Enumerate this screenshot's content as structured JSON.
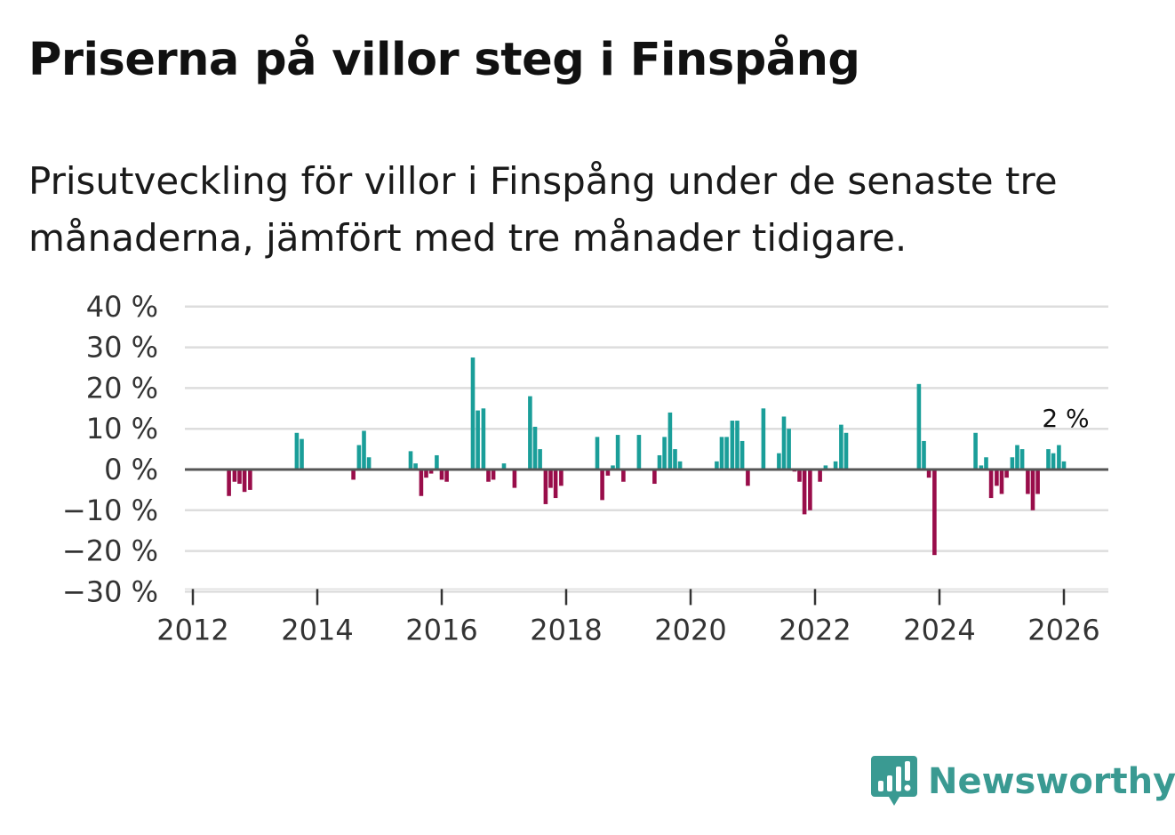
{
  "header": {
    "title": "Priserna på villor steg i Finspång",
    "subtitle": "Prisutveckling för villor i Finspång under de senaste tre månaderna, jämfört med tre månader tidigare."
  },
  "brand": {
    "name": "Newsworthy",
    "icon": "newsworthy-logo-icon"
  },
  "colors": {
    "positive": "#1a9e99",
    "negative": "#990d4a",
    "grid": "#dddddd",
    "zero": "#555555",
    "brand": "#3a9a92"
  },
  "chart_data": {
    "type": "bar",
    "title": "Priserna på villor steg i Finspång",
    "xlabel": "",
    "ylabel": "",
    "ylim": [
      -30,
      40
    ],
    "xlim": [
      2011.9,
      2026.7
    ],
    "yticks": [
      40,
      30,
      20,
      10,
      0,
      -10,
      -20,
      -30
    ],
    "ytick_labels": [
      "40 %",
      "30 %",
      "20 %",
      "10 %",
      "0 %",
      "−10 %",
      "−20 %",
      "−30 %"
    ],
    "xticks": [
      2012,
      2014,
      2016,
      2018,
      2020,
      2022,
      2024,
      2026
    ],
    "xtick_labels": [
      "2012",
      "2014",
      "2016",
      "2018",
      "2020",
      "2022",
      "2024",
      "2026"
    ],
    "annotation": {
      "x": 2026.0,
      "value": 2,
      "label": "2 %"
    },
    "series": [
      {
        "name": "Prisutveckling",
        "points": [
          [
            2012.58,
            -6.5
          ],
          [
            2012.67,
            -3
          ],
          [
            2012.75,
            -3.5
          ],
          [
            2012.83,
            -5.5
          ],
          [
            2012.92,
            -5
          ],
          [
            2013.67,
            9
          ],
          [
            2013.75,
            7.5
          ],
          [
            2014.58,
            -2.5
          ],
          [
            2014.67,
            6
          ],
          [
            2014.75,
            9.5
          ],
          [
            2014.83,
            3
          ],
          [
            2015.5,
            4.5
          ],
          [
            2015.58,
            1.5
          ],
          [
            2015.67,
            -6.5
          ],
          [
            2015.75,
            -2
          ],
          [
            2015.83,
            -1
          ],
          [
            2015.92,
            3.5
          ],
          [
            2016.0,
            -2.5
          ],
          [
            2016.08,
            -3
          ],
          [
            2016.5,
            27.5
          ],
          [
            2016.58,
            14.5
          ],
          [
            2016.67,
            15
          ],
          [
            2016.75,
            -3
          ],
          [
            2016.83,
            -2.5
          ],
          [
            2017.0,
            1.5
          ],
          [
            2017.17,
            -4.5
          ],
          [
            2017.42,
            18
          ],
          [
            2017.5,
            10.5
          ],
          [
            2017.58,
            5
          ],
          [
            2017.67,
            -8.5
          ],
          [
            2017.75,
            -4.5
          ],
          [
            2017.83,
            -7
          ],
          [
            2017.92,
            -4
          ],
          [
            2018.5,
            8
          ],
          [
            2018.58,
            -7.5
          ],
          [
            2018.67,
            -1.5
          ],
          [
            2018.75,
            1
          ],
          [
            2018.83,
            8.5
          ],
          [
            2018.92,
            -3
          ],
          [
            2019.17,
            8.5
          ],
          [
            2019.42,
            -3.5
          ],
          [
            2019.5,
            3.5
          ],
          [
            2019.58,
            8
          ],
          [
            2019.67,
            14
          ],
          [
            2019.75,
            5
          ],
          [
            2019.83,
            2
          ],
          [
            2020.42,
            2
          ],
          [
            2020.5,
            8
          ],
          [
            2020.58,
            8
          ],
          [
            2020.67,
            12
          ],
          [
            2020.75,
            12
          ],
          [
            2020.83,
            7
          ],
          [
            2020.92,
            -4
          ],
          [
            2021.17,
            15
          ],
          [
            2021.42,
            4
          ],
          [
            2021.5,
            13
          ],
          [
            2021.58,
            10
          ],
          [
            2021.67,
            -0.5
          ],
          [
            2021.75,
            -3
          ],
          [
            2021.83,
            -11
          ],
          [
            2021.92,
            -10
          ],
          [
            2022.08,
            -3
          ],
          [
            2022.17,
            1
          ],
          [
            2022.33,
            2
          ],
          [
            2022.42,
            11
          ],
          [
            2022.5,
            9
          ],
          [
            2023.67,
            21
          ],
          [
            2023.75,
            7
          ],
          [
            2023.83,
            -2
          ],
          [
            2023.92,
            -21
          ],
          [
            2024.58,
            9
          ],
          [
            2024.67,
            1
          ],
          [
            2024.75,
            3
          ],
          [
            2024.83,
            -7
          ],
          [
            2024.92,
            -4
          ],
          [
            2025.0,
            -6
          ],
          [
            2025.08,
            -2
          ],
          [
            2025.17,
            3
          ],
          [
            2025.25,
            6
          ],
          [
            2025.33,
            5
          ],
          [
            2025.42,
            -6
          ],
          [
            2025.5,
            -10
          ],
          [
            2025.58,
            -6
          ],
          [
            2025.75,
            5
          ],
          [
            2025.83,
            4
          ],
          [
            2025.92,
            6
          ],
          [
            2026.0,
            2
          ]
        ]
      }
    ]
  }
}
